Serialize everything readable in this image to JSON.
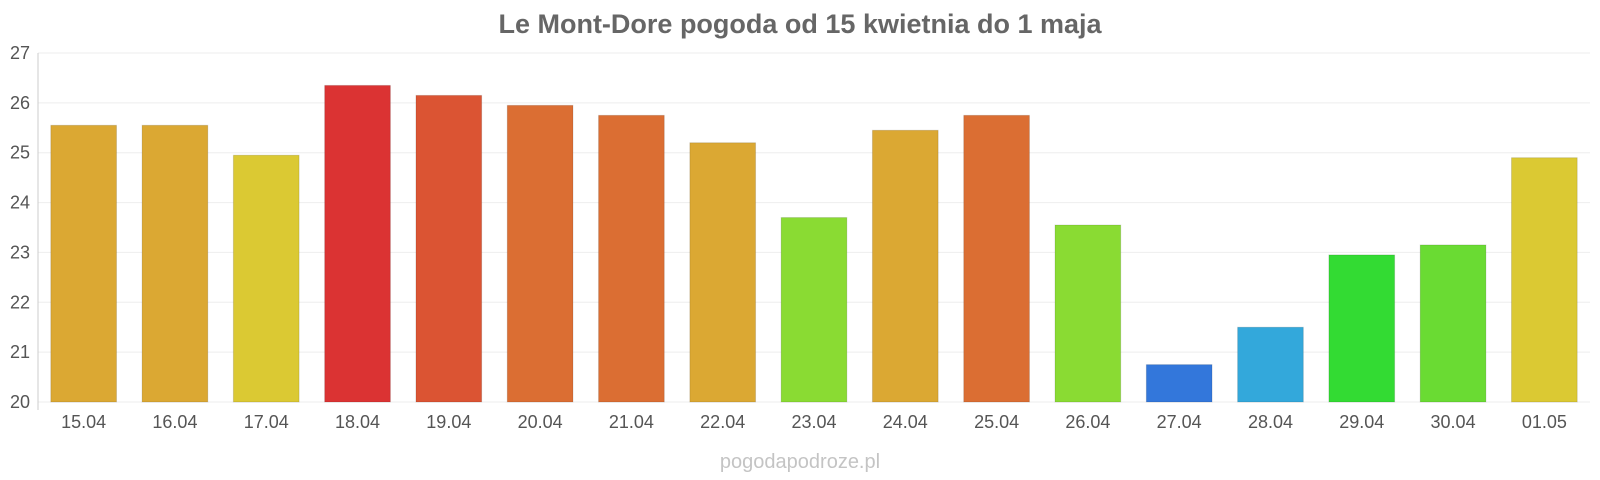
{
  "chart_data": {
    "type": "bar",
    "title": "Le Mont-Dore pogoda od 15 kwietnia do 1 maja",
    "xlabel": "",
    "ylabel": "",
    "ylim": [
      20,
      27
    ],
    "yticks": [
      "20",
      "21",
      "22",
      "23",
      "24",
      "25",
      "26",
      "27"
    ],
    "categories": [
      "15.04",
      "16.04",
      "17.04",
      "18.04",
      "19.04",
      "20.04",
      "21.04",
      "22.04",
      "23.04",
      "24.04",
      "25.04",
      "26.04",
      "27.04",
      "28.04",
      "29.04",
      "30.04",
      "01.05"
    ],
    "values": [
      25.55,
      25.55,
      24.95,
      26.35,
      26.15,
      25.95,
      25.75,
      25.2,
      23.7,
      25.45,
      25.75,
      23.55,
      20.75,
      21.5,
      22.95,
      23.15,
      24.9
    ],
    "bar_colors": [
      "#dba833",
      "#dba833",
      "#dbc933",
      "#db3333",
      "#db5433",
      "#db6e33",
      "#db6e33",
      "#dba833",
      "#8adb33",
      "#dba833",
      "#db6e33",
      "#8adb33",
      "#3377db",
      "#33a8db",
      "#33db33",
      "#6adb33",
      "#dbc933"
    ],
    "grid": true,
    "legend": "none"
  },
  "watermark": "pogodapodroze.pl",
  "colors": {
    "title": "#666666",
    "tick_text": "#555555",
    "grid": "#eeeeee",
    "axis": "#cccccc",
    "watermark": "#c4c4c4"
  }
}
